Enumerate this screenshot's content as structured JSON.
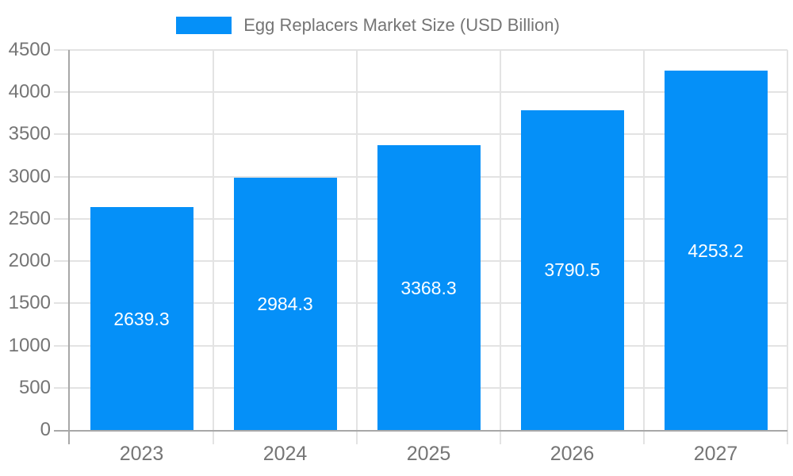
{
  "chart_data": {
    "type": "bar",
    "legend": "Egg Replacers Market Size (USD Billion)",
    "legend_position": "top-center",
    "categories": [
      "2023",
      "2024",
      "2025",
      "2026",
      "2027"
    ],
    "values": [
      2639.3,
      2984.3,
      3368.3,
      3790.5,
      4253.2
    ],
    "value_labels": [
      "2639.3",
      "2984.3",
      "3368.3",
      "3790.5",
      "4253.2"
    ],
    "xlabel": "",
    "ylabel": "",
    "ylim": [
      0,
      4500
    ],
    "y_tick_step": 500,
    "y_tick_labels": [
      "0",
      "500",
      "1000",
      "1500",
      "2000",
      "2500",
      "3000",
      "3500",
      "4000",
      "4500"
    ],
    "grid": true,
    "colors": {
      "bar": "#0590f8",
      "value_label_text": "#ffffff",
      "axis_text": "#757575",
      "axis_line": "#a8a8a8",
      "gridline": "#e3e3e3",
      "background": "#ffffff"
    }
  }
}
